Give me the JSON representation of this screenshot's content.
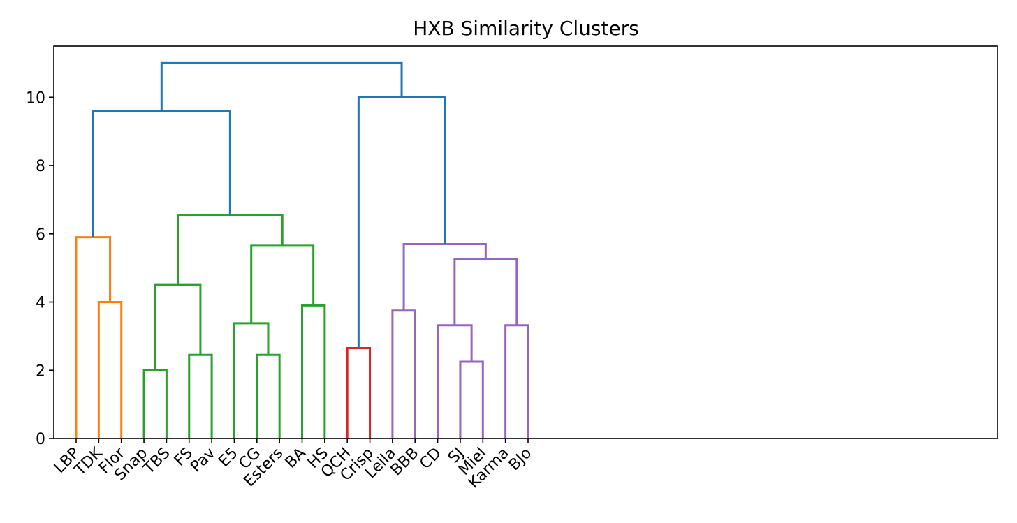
{
  "chart_data": {
    "type": "dendrogram",
    "title": "HXB Similarity Clusters",
    "xlabel": "",
    "ylabel": "",
    "ylim": [
      0,
      11.5
    ],
    "yticks": [
      0,
      2,
      4,
      6,
      8,
      10
    ],
    "grid": false,
    "leaves": [
      "LBP",
      "TDK",
      "Flor",
      "Snap",
      "TBS",
      "FS",
      "Pav",
      "E5",
      "CG",
      "Esters",
      "BA",
      "HS",
      "QCH",
      "Crisp",
      "Leila",
      "BBB",
      "CD",
      "SJ",
      "Miel",
      "Karma",
      "BJo"
    ],
    "colors": {
      "above_threshold": "#1f77b4",
      "cluster_orange": "#ff7f0e",
      "cluster_green": "#2ca02c",
      "cluster_red": "#d62728",
      "cluster_purple": "#9467bd"
    },
    "merges": [
      {
        "id": "m1",
        "left": "TDK",
        "right": "Flor",
        "height": 4.0,
        "color": "cluster_orange"
      },
      {
        "id": "m2",
        "left": "LBP",
        "right": "m1",
        "height": 5.9,
        "color": "cluster_orange"
      },
      {
        "id": "m3",
        "left": "Snap",
        "right": "TBS",
        "height": 2.0,
        "color": "cluster_green"
      },
      {
        "id": "m4",
        "left": "FS",
        "right": "Pav",
        "height": 2.45,
        "color": "cluster_green"
      },
      {
        "id": "m5",
        "left": "m3",
        "right": "m4",
        "height": 4.5,
        "color": "cluster_green"
      },
      {
        "id": "m6",
        "left": "CG",
        "right": "Esters",
        "height": 2.45,
        "color": "cluster_green"
      },
      {
        "id": "m7",
        "left": "E5",
        "right": "m6",
        "height": 3.38,
        "color": "cluster_green"
      },
      {
        "id": "m8",
        "left": "BA",
        "right": "HS",
        "height": 3.9,
        "color": "cluster_green"
      },
      {
        "id": "m9",
        "left": "m7",
        "right": "m8",
        "height": 5.65,
        "color": "cluster_green"
      },
      {
        "id": "m10",
        "left": "m5",
        "right": "m9",
        "height": 6.55,
        "color": "cluster_green"
      },
      {
        "id": "m11",
        "left": "m2",
        "right": "m10",
        "height": 9.6,
        "color": "above_threshold"
      },
      {
        "id": "m12",
        "left": "QCH",
        "right": "Crisp",
        "height": 2.65,
        "color": "cluster_red"
      },
      {
        "id": "m13",
        "left": "Leila",
        "right": "BBB",
        "height": 3.75,
        "color": "cluster_purple"
      },
      {
        "id": "m14",
        "left": "SJ",
        "right": "Miel",
        "height": 2.25,
        "color": "cluster_purple"
      },
      {
        "id": "m15",
        "left": "CD",
        "right": "m14",
        "height": 3.32,
        "color": "cluster_purple"
      },
      {
        "id": "m16",
        "left": "Karma",
        "right": "BJo",
        "height": 3.32,
        "color": "cluster_purple"
      },
      {
        "id": "m17",
        "left": "m15",
        "right": "m16",
        "height": 5.25,
        "color": "cluster_purple"
      },
      {
        "id": "m18",
        "left": "m13",
        "right": "m17",
        "height": 5.7,
        "color": "cluster_purple"
      },
      {
        "id": "m19",
        "left": "m12",
        "right": "m18",
        "height": 10.0,
        "color": "above_threshold"
      },
      {
        "id": "m20",
        "left": "m11",
        "right": "m19",
        "height": 11.0,
        "color": "above_threshold"
      }
    ]
  }
}
